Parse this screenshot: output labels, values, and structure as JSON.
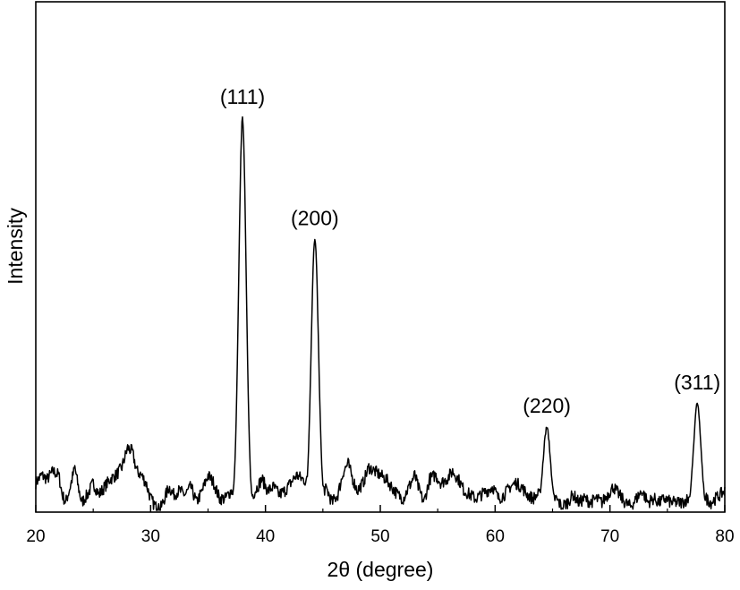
{
  "chart_data": {
    "type": "line",
    "xlabel": "2θ (degree)",
    "ylabel": "Intensity",
    "xlim": [
      20,
      80
    ],
    "ylim": [
      0,
      100
    ],
    "xticks": [
      20,
      30,
      40,
      50,
      60,
      70,
      80
    ],
    "grid": false,
    "yticklabels_shown": false,
    "peaks": [
      {
        "label": "(111)",
        "x": 38.0,
        "y": 100
      },
      {
        "label": "(200)",
        "x": 44.3,
        "y": 69
      },
      {
        "label": "(220)",
        "x": 64.5,
        "y": 21
      },
      {
        "label": "(311)",
        "x": 77.6,
        "y": 27
      }
    ],
    "background": [
      [
        20.0,
        7
      ],
      [
        20.5,
        9
      ],
      [
        21.0,
        8
      ],
      [
        21.5,
        10
      ],
      [
        22.0,
        9
      ],
      [
        22.3,
        4
      ],
      [
        22.6,
        2
      ],
      [
        23.0,
        6
      ],
      [
        23.4,
        11
      ],
      [
        23.7,
        6
      ],
      [
        24.0,
        2
      ],
      [
        24.5,
        4
      ],
      [
        25.0,
        7
      ],
      [
        25.5,
        4
      ],
      [
        26.0,
        6
      ],
      [
        26.5,
        8
      ],
      [
        27.0,
        9
      ],
      [
        27.5,
        11
      ],
      [
        28.0,
        16
      ],
      [
        28.4,
        15
      ],
      [
        28.8,
        10
      ],
      [
        29.2,
        9
      ],
      [
        29.6,
        7
      ],
      [
        30.0,
        3
      ],
      [
        30.4,
        1
      ],
      [
        30.8,
        0
      ],
      [
        31.2,
        3
      ],
      [
        31.6,
        6
      ],
      [
        32.0,
        4
      ],
      [
        32.5,
        5
      ],
      [
        33.0,
        4
      ],
      [
        33.5,
        6
      ],
      [
        34.0,
        2
      ],
      [
        34.5,
        5
      ],
      [
        35.0,
        9
      ],
      [
        35.5,
        7
      ],
      [
        36.0,
        3
      ],
      [
        36.5,
        3
      ],
      [
        37.0,
        5
      ],
      [
        38.9,
        4
      ],
      [
        39.3,
        6
      ],
      [
        39.7,
        8
      ],
      [
        40.2,
        5
      ],
      [
        40.7,
        6
      ],
      [
        41.2,
        4
      ],
      [
        41.7,
        5
      ],
      [
        42.2,
        7
      ],
      [
        42.7,
        9
      ],
      [
        43.2,
        8
      ],
      [
        45.4,
        5
      ],
      [
        45.8,
        2
      ],
      [
        46.3,
        4
      ],
      [
        46.8,
        10
      ],
      [
        47.2,
        12
      ],
      [
        47.6,
        8
      ],
      [
        48.0,
        5
      ],
      [
        48.5,
        7
      ],
      [
        49.0,
        11
      ],
      [
        49.5,
        10
      ],
      [
        50.0,
        9
      ],
      [
        50.5,
        8
      ],
      [
        51.0,
        6
      ],
      [
        51.5,
        4
      ],
      [
        52.0,
        3
      ],
      [
        52.5,
        6
      ],
      [
        53.0,
        9
      ],
      [
        53.4,
        5
      ],
      [
        53.8,
        2
      ],
      [
        54.3,
        8
      ],
      [
        54.8,
        9
      ],
      [
        55.3,
        7
      ],
      [
        55.8,
        8
      ],
      [
        56.3,
        10
      ],
      [
        56.8,
        8
      ],
      [
        57.3,
        5
      ],
      [
        57.8,
        4
      ],
      [
        58.3,
        3
      ],
      [
        58.8,
        4
      ],
      [
        59.3,
        5
      ],
      [
        59.8,
        6
      ],
      [
        60.3,
        3
      ],
      [
        60.8,
        4
      ],
      [
        61.3,
        6
      ],
      [
        61.8,
        7
      ],
      [
        62.3,
        6
      ],
      [
        62.8,
        4
      ],
      [
        63.3,
        3
      ],
      [
        63.7,
        4
      ],
      [
        65.3,
        3
      ],
      [
        65.8,
        1
      ],
      [
        66.3,
        2
      ],
      [
        66.8,
        4
      ],
      [
        67.3,
        2
      ],
      [
        67.8,
        3
      ],
      [
        68.3,
        2
      ],
      [
        68.8,
        3
      ],
      [
        69.3,
        2
      ],
      [
        69.8,
        4
      ],
      [
        70.3,
        6
      ],
      [
        70.8,
        4
      ],
      [
        71.3,
        2
      ],
      [
        71.8,
        1
      ],
      [
        72.3,
        3
      ],
      [
        72.8,
        5
      ],
      [
        73.3,
        2
      ],
      [
        73.8,
        3
      ],
      [
        74.3,
        2
      ],
      [
        74.8,
        3
      ],
      [
        75.3,
        2
      ],
      [
        75.8,
        2
      ],
      [
        76.3,
        2
      ],
      [
        76.8,
        3
      ],
      [
        78.4,
        3
      ],
      [
        78.8,
        2
      ],
      [
        79.2,
        3
      ],
      [
        79.6,
        4
      ],
      [
        80.0,
        5
      ]
    ]
  }
}
